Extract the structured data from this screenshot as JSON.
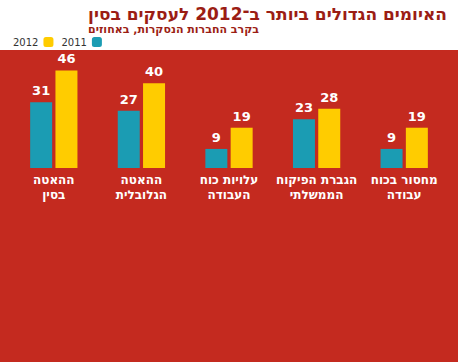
{
  "chart_data": {
    "type": "bar",
    "title": "האיומים הגדולים ביותר ב־2012 לעסקים בסין",
    "subtitle": "בקרב החברות הנסקרות, באחוזים",
    "categories": [
      "ההאטה\nבסין",
      "ההאטה\nהגלובלית",
      "עלויות כוח\nהעבודה",
      "הגברת הפיקוח\nהממשלתי",
      "מחסור בכוח\nעבודה"
    ],
    "series": [
      {
        "name": "2011",
        "color": "#1b9cb3",
        "values": [
          31,
          27,
          9,
          23,
          9
        ]
      },
      {
        "name": "2012",
        "color": "#ffcc00",
        "values": [
          46,
          40,
          19,
          28,
          19
        ]
      }
    ],
    "ylim": [
      0,
      50
    ],
    "legend": "top-left",
    "data_labels": true,
    "tick_labels": "x"
  }
}
